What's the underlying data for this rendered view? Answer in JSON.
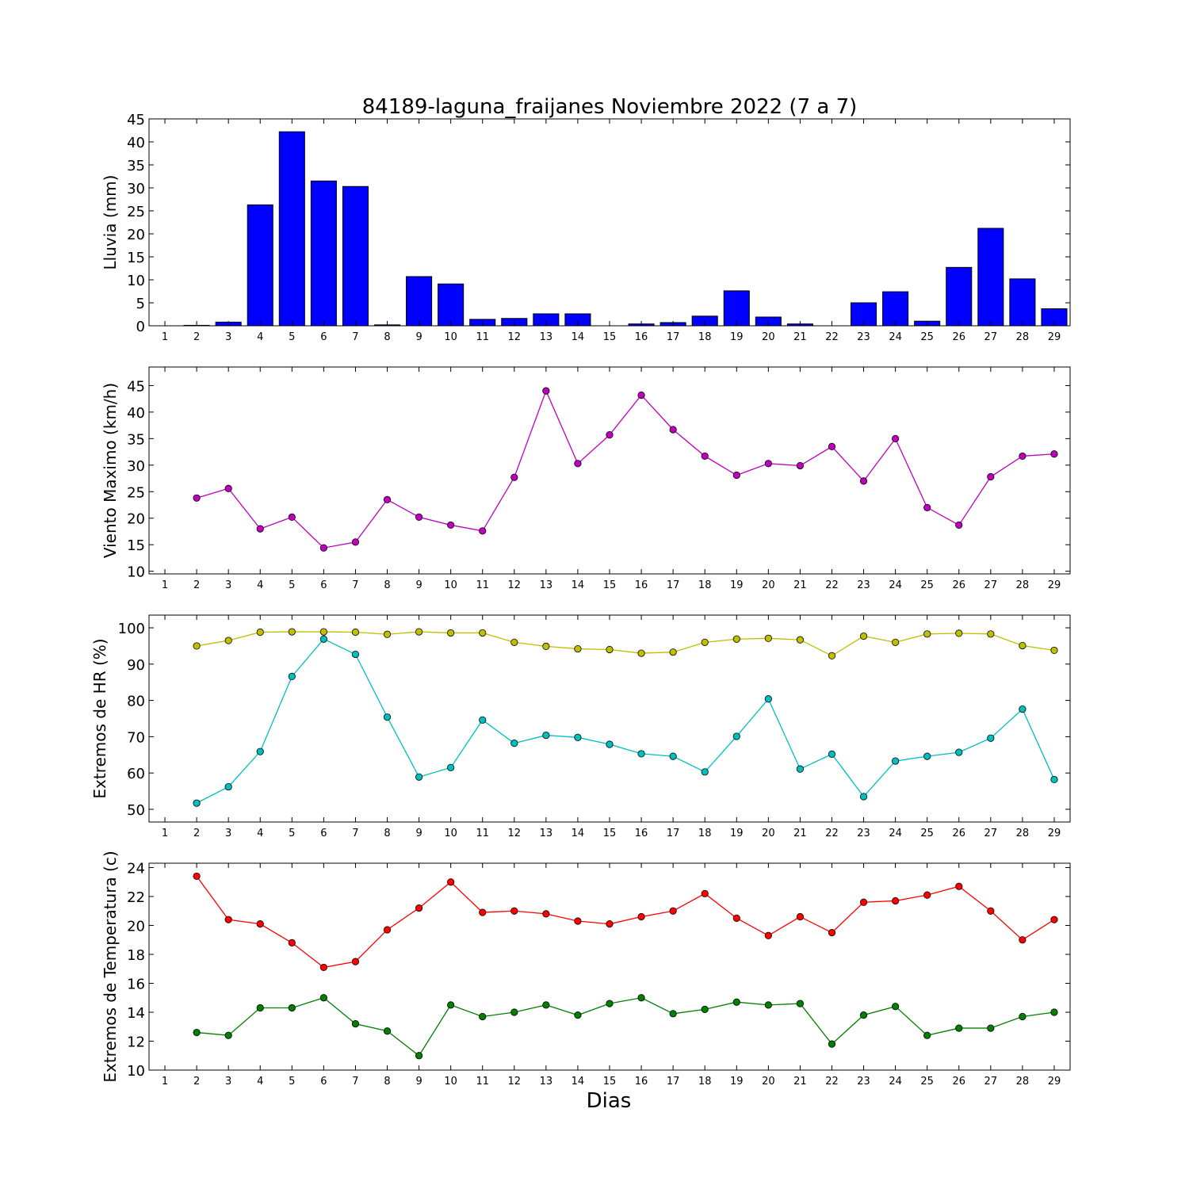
{
  "figure": {
    "title": "84189-laguna_fraijanes Noviembre 2022  (7 a 7)",
    "xlabel": "Dias"
  },
  "chart_data": [
    {
      "type": "bar",
      "ylabel": "Lluvia (mm)",
      "ylim": [
        0,
        45
      ],
      "yticks": [
        0,
        5,
        10,
        15,
        20,
        25,
        30,
        35,
        40,
        45
      ],
      "xlim": [
        0.5,
        29.5
      ],
      "categories": [
        1,
        2,
        3,
        4,
        5,
        6,
        7,
        8,
        9,
        10,
        11,
        12,
        13,
        14,
        15,
        16,
        17,
        18,
        19,
        20,
        21,
        22,
        23,
        24,
        25,
        26,
        27,
        28,
        29
      ],
      "color": "#0000ff",
      "values": [
        0,
        0.1,
        0.8,
        26.3,
        42.2,
        31.5,
        30.3,
        0.2,
        10.7,
        9.1,
        1.4,
        1.6,
        2.6,
        2.6,
        0,
        0.4,
        0.7,
        2.1,
        7.6,
        1.9,
        0.4,
        0,
        5.0,
        7.4,
        1.0,
        12.7,
        21.2,
        10.2,
        3.7
      ]
    },
    {
      "type": "line",
      "ylabel": "Viento Maximo (km/h)",
      "ylim": [
        9.5,
        48.5
      ],
      "yticks": [
        10,
        15,
        20,
        25,
        30,
        35,
        40,
        45
      ],
      "xlim": [
        0.5,
        29.5
      ],
      "xticks": [
        1,
        2,
        3,
        4,
        5,
        6,
        7,
        8,
        9,
        10,
        11,
        12,
        13,
        14,
        15,
        16,
        17,
        18,
        19,
        20,
        21,
        22,
        23,
        24,
        25,
        26,
        27,
        28,
        29
      ],
      "series": [
        {
          "color": "#bf00bf",
          "x": [
            2,
            3,
            4,
            5,
            6,
            7,
            8,
            9,
            10,
            11,
            12,
            13,
            14,
            15,
            16,
            17,
            18,
            19,
            20,
            21,
            22,
            23,
            24,
            25,
            26,
            27,
            28,
            29
          ],
          "values": [
            23.8,
            25.6,
            18.0,
            20.2,
            14.4,
            15.5,
            23.5,
            20.2,
            18.7,
            17.6,
            27.7,
            44.0,
            30.3,
            35.7,
            43.2,
            36.7,
            31.7,
            28.1,
            30.3,
            29.9,
            33.5,
            27.0,
            35.0,
            22.0,
            18.7,
            27.8,
            31.7,
            32.1
          ]
        }
      ]
    },
    {
      "type": "line",
      "ylabel": "Extremos de HR (%)",
      "ylim": [
        46.5,
        103.5
      ],
      "yticks": [
        50,
        60,
        70,
        80,
        90,
        100
      ],
      "xlim": [
        0.5,
        29.5
      ],
      "xticks": [
        1,
        2,
        3,
        4,
        5,
        6,
        7,
        8,
        9,
        10,
        11,
        12,
        13,
        14,
        15,
        16,
        17,
        18,
        19,
        20,
        21,
        22,
        23,
        24,
        25,
        26,
        27,
        28,
        29
      ],
      "series": [
        {
          "color": "#bfbf00",
          "x": [
            2,
            3,
            4,
            5,
            6,
            7,
            8,
            9,
            10,
            11,
            12,
            13,
            14,
            15,
            16,
            17,
            18,
            19,
            20,
            21,
            22,
            23,
            24,
            25,
            26,
            27,
            28,
            29
          ],
          "values": [
            95.0,
            96.5,
            98.8,
            98.9,
            98.9,
            98.8,
            98.2,
            98.9,
            98.6,
            98.6,
            96.0,
            94.9,
            94.2,
            94.0,
            93.0,
            93.3,
            96.0,
            96.9,
            97.1,
            96.7,
            92.3,
            97.7,
            96.0,
            98.3,
            98.5,
            98.3,
            95.1,
            93.8
          ]
        },
        {
          "color": "#00bfbf",
          "x": [
            2,
            3,
            4,
            5,
            6,
            7,
            8,
            9,
            10,
            11,
            12,
            13,
            14,
            15,
            16,
            17,
            18,
            19,
            20,
            21,
            22,
            23,
            24,
            25,
            26,
            27,
            28,
            29
          ],
          "values": [
            51.7,
            56.2,
            65.9,
            86.6,
            96.9,
            92.7,
            75.4,
            58.9,
            61.5,
            74.6,
            68.2,
            70.4,
            69.8,
            67.9,
            65.3,
            64.6,
            60.3,
            70.1,
            80.4,
            61.1,
            65.2,
            53.5,
            63.3,
            64.6,
            65.7,
            69.6,
            77.6,
            58.2
          ]
        }
      ]
    },
    {
      "type": "line",
      "ylabel": "Extremos de Temperatura (c)",
      "ylim": [
        10,
        24.3
      ],
      "yticks": [
        10,
        12,
        14,
        16,
        18,
        20,
        22,
        24
      ],
      "xlim": [
        0.5,
        29.5
      ],
      "xticks": [
        1,
        2,
        3,
        4,
        5,
        6,
        7,
        8,
        9,
        10,
        11,
        12,
        13,
        14,
        15,
        16,
        17,
        18,
        19,
        20,
        21,
        22,
        23,
        24,
        25,
        26,
        27,
        28,
        29
      ],
      "series": [
        {
          "color": "#ff0000",
          "x": [
            2,
            3,
            4,
            5,
            6,
            7,
            8,
            9,
            10,
            11,
            12,
            13,
            14,
            15,
            16,
            17,
            18,
            19,
            20,
            21,
            22,
            23,
            24,
            25,
            26,
            27,
            28,
            29
          ],
          "values": [
            23.4,
            20.4,
            20.1,
            18.8,
            17.1,
            17.5,
            19.7,
            21.2,
            23.0,
            20.9,
            21.0,
            20.8,
            20.3,
            20.1,
            20.6,
            21.0,
            22.2,
            20.5,
            19.3,
            20.6,
            19.5,
            21.6,
            21.7,
            22.1,
            22.7,
            21.0,
            19.0,
            20.4
          ]
        },
        {
          "color": "#007f00",
          "x": [
            2,
            3,
            4,
            5,
            6,
            7,
            8,
            9,
            10,
            11,
            12,
            13,
            14,
            15,
            16,
            17,
            18,
            19,
            20,
            21,
            22,
            23,
            24,
            25,
            26,
            27,
            28,
            29
          ],
          "values": [
            12.6,
            12.4,
            14.3,
            14.3,
            15.0,
            13.2,
            12.7,
            11.0,
            14.5,
            13.7,
            14.0,
            14.5,
            13.8,
            14.6,
            15.0,
            13.9,
            14.2,
            14.7,
            14.5,
            14.6,
            11.8,
            13.8,
            14.4,
            12.4,
            12.9,
            12.9,
            13.7,
            14.0
          ]
        }
      ]
    }
  ]
}
